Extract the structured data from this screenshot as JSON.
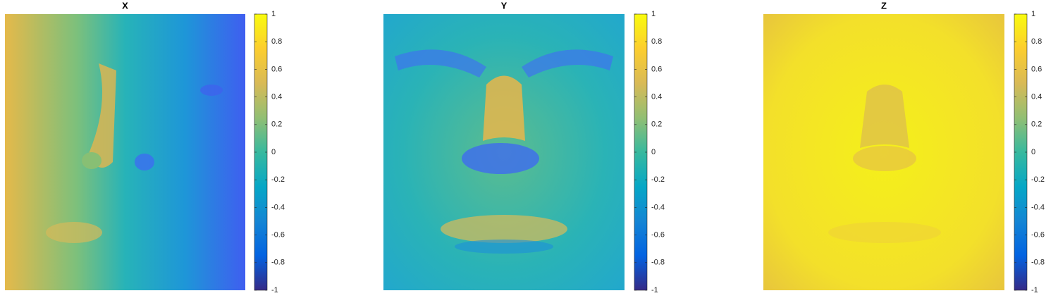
{
  "colormap": [
    "#352a87",
    "#0363e1",
    "#1485d4",
    "#06a7c6",
    "#38b99e",
    "#92bf73",
    "#d9ba56",
    "#fcce2e",
    "#f9fb0e"
  ],
  "chart_data": [
    {
      "type": "image",
      "title": "X",
      "clim": [
        -1,
        1
      ],
      "cticks": [
        -1,
        -0.8,
        -0.6,
        -0.4,
        -0.2,
        0,
        0.2,
        0.4,
        0.6,
        0.8,
        1
      ]
    },
    {
      "type": "image",
      "title": "Y",
      "clim": [
        -1,
        1
      ],
      "cticks": [
        -1,
        -0.8,
        -0.6,
        -0.4,
        -0.2,
        0,
        0.2,
        0.4,
        0.6,
        0.8,
        1
      ]
    },
    {
      "type": "image",
      "title": "Z",
      "clim": [
        -1,
        1
      ],
      "cticks": [
        -1,
        -0.8,
        -0.6,
        -0.4,
        -0.2,
        0,
        0.2,
        0.4,
        0.6,
        0.8,
        1
      ]
    }
  ]
}
